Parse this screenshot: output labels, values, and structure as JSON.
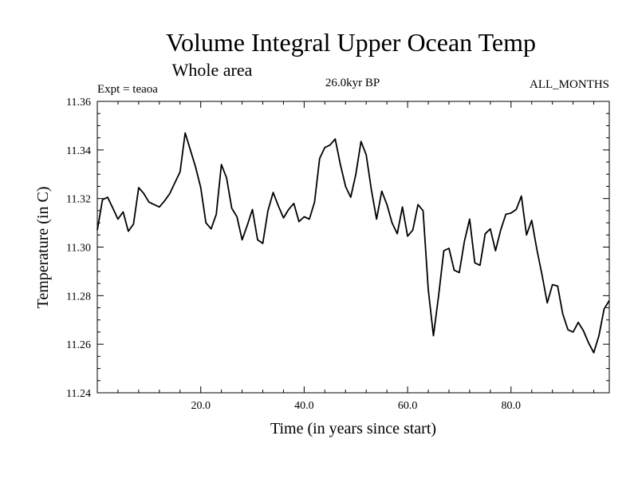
{
  "chart_data": {
    "type": "line",
    "title": "Volume Integral Upper Ocean Temp",
    "subtitle": "Whole area",
    "expt_label": "Expt = teaoa",
    "period_label": "26.0kyr BP",
    "months_label": "ALL_MONTHS",
    "xlabel": "Time (in years since start)",
    "ylabel": "Temperature (in C)",
    "xlim": [
      0,
      99
    ],
    "ylim": [
      11.24,
      11.36
    ],
    "x_ticks": [
      20,
      40,
      60,
      80
    ],
    "x_tick_labels": [
      "20.0",
      "40.0",
      "60.0",
      "80.0"
    ],
    "y_ticks": [
      11.24,
      11.26,
      11.28,
      11.3,
      11.32,
      11.34,
      11.36
    ],
    "y_tick_labels": [
      "11.24",
      "11.26",
      "11.28",
      "11.30",
      "11.32",
      "11.34",
      "11.36"
    ],
    "x": [
      0,
      1,
      2,
      3,
      4,
      5,
      6,
      7,
      8,
      9,
      10,
      11,
      12,
      13,
      14,
      15,
      16,
      17,
      18,
      19,
      20,
      21,
      22,
      23,
      24,
      25,
      26,
      27,
      28,
      29,
      30,
      31,
      32,
      33,
      34,
      35,
      36,
      37,
      38,
      39,
      40,
      41,
      42,
      43,
      44,
      45,
      46,
      47,
      48,
      49,
      50,
      51,
      52,
      53,
      54,
      55,
      56,
      57,
      58,
      59,
      60,
      61,
      62,
      63,
      64,
      65,
      66,
      67,
      68,
      69,
      70,
      71,
      72,
      73,
      74,
      75,
      76,
      77,
      78,
      79,
      80,
      81,
      82,
      83,
      84,
      85,
      86,
      87,
      88,
      89,
      90,
      91,
      92,
      93,
      94,
      95,
      96,
      97,
      98,
      99
    ],
    "values": [
      11.307,
      11.3195,
      11.3205,
      11.316,
      11.3115,
      11.3145,
      11.3065,
      11.3095,
      11.3245,
      11.322,
      11.3185,
      11.3175,
      11.3165,
      11.319,
      11.322,
      11.3265,
      11.331,
      11.347,
      11.34,
      11.333,
      11.3245,
      11.31,
      11.3075,
      11.3135,
      11.334,
      11.3285,
      11.316,
      11.3125,
      11.303,
      11.309,
      11.3155,
      11.303,
      11.3015,
      11.315,
      11.3225,
      11.317,
      11.312,
      11.3155,
      11.318,
      11.3105,
      11.3125,
      11.3115,
      11.3185,
      11.3365,
      11.341,
      11.342,
      11.3445,
      11.334,
      11.325,
      11.3205,
      11.33,
      11.3435,
      11.338,
      11.3235,
      11.3115,
      11.323,
      11.3175,
      11.31,
      11.3055,
      11.3165,
      11.3045,
      11.307,
      11.3175,
      11.315,
      11.2825,
      11.2635,
      11.28,
      11.2985,
      11.2995,
      11.2905,
      11.2895,
      11.3025,
      11.3115,
      11.2935,
      11.2925,
      11.3055,
      11.3075,
      11.2985,
      11.307,
      11.3135,
      11.314,
      11.3155,
      11.321,
      11.305,
      11.311,
      11.299,
      11.2885,
      11.277,
      11.2845,
      11.284,
      11.2725,
      11.266,
      11.265,
      11.269,
      11.2655,
      11.2605,
      11.2565,
      11.2635,
      11.2745,
      11.278
    ]
  }
}
